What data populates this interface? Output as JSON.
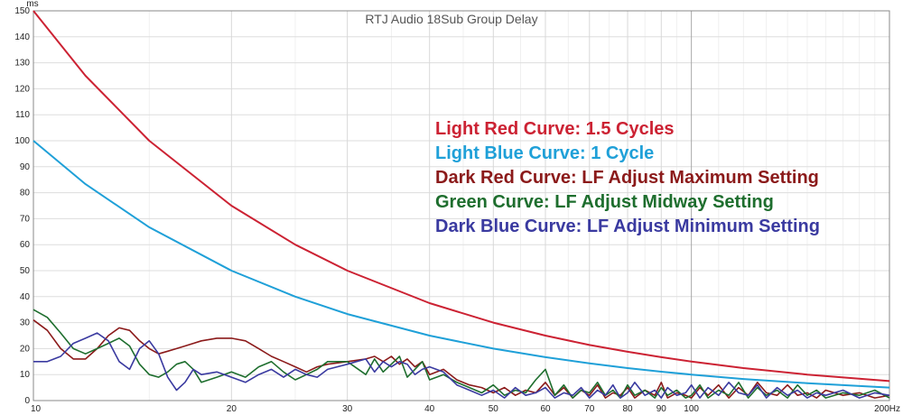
{
  "chart_data": {
    "type": "line",
    "title": "RTJ Audio 18Sub Group Delay",
    "y_unit_label": "ms",
    "x_unit_label": "Hz",
    "x_scale": "log",
    "xlim": [
      10,
      200
    ],
    "ylim": [
      0,
      150
    ],
    "grid": true,
    "legend_position": "top-right",
    "x_ticks": [
      {
        "value": 10,
        "label": "10"
      },
      {
        "value": 20,
        "label": "20"
      },
      {
        "value": 30,
        "label": "30"
      },
      {
        "value": 40,
        "label": "40"
      },
      {
        "value": 50,
        "label": "50"
      },
      {
        "value": 60,
        "label": "60"
      },
      {
        "value": 70,
        "label": "70"
      },
      {
        "value": 80,
        "label": "80"
      },
      {
        "value": 90,
        "label": "90"
      },
      {
        "value": 100,
        "label": "100"
      },
      {
        "value": 200,
        "label": "200Hz"
      }
    ],
    "y_ticks": [
      {
        "value": 0,
        "label": "0"
      },
      {
        "value": 10,
        "label": "10"
      },
      {
        "value": 20,
        "label": "20"
      },
      {
        "value": 30,
        "label": "30"
      },
      {
        "value": 40,
        "label": "40"
      },
      {
        "value": 50,
        "label": "50"
      },
      {
        "value": 60,
        "label": "60"
      },
      {
        "value": 70,
        "label": "70"
      },
      {
        "value": 80,
        "label": "80"
      },
      {
        "value": 90,
        "label": "90"
      },
      {
        "value": 100,
        "label": "100"
      },
      {
        "value": 110,
        "label": "110"
      },
      {
        "value": 120,
        "label": "120"
      },
      {
        "value": 130,
        "label": "130"
      },
      {
        "value": 140,
        "label": "140"
      },
      {
        "value": 150,
        "label": "150"
      }
    ],
    "series": [
      {
        "name": "Light Red Curve: 1.5 Cycles",
        "color": "#cc2233",
        "points": [
          [
            10,
            150
          ],
          [
            12,
            125
          ],
          [
            15,
            100
          ],
          [
            20,
            75
          ],
          [
            25,
            60
          ],
          [
            30,
            50
          ],
          [
            40,
            37.5
          ],
          [
            50,
            30
          ],
          [
            60,
            25
          ],
          [
            70,
            21.4
          ],
          [
            80,
            18.8
          ],
          [
            90,
            16.7
          ],
          [
            100,
            15
          ],
          [
            120,
            12.5
          ],
          [
            150,
            10
          ],
          [
            200,
            7.5
          ]
        ]
      },
      {
        "name": "Light Blue Curve: 1 Cycle",
        "color": "#1fa0d8",
        "points": [
          [
            10,
            100
          ],
          [
            12,
            83.3
          ],
          [
            15,
            66.7
          ],
          [
            20,
            50
          ],
          [
            25,
            40
          ],
          [
            30,
            33.3
          ],
          [
            40,
            25
          ],
          [
            50,
            20
          ],
          [
            60,
            16.7
          ],
          [
            70,
            14.3
          ],
          [
            80,
            12.5
          ],
          [
            90,
            11.1
          ],
          [
            100,
            10
          ],
          [
            120,
            8.3
          ],
          [
            150,
            6.7
          ],
          [
            200,
            5
          ]
        ]
      },
      {
        "name": "Dark Red Curve: LF Adjust Maximum Setting",
        "color": "#8b1a1a",
        "points": [
          [
            10,
            31
          ],
          [
            10.5,
            27
          ],
          [
            11,
            20
          ],
          [
            11.5,
            16
          ],
          [
            12,
            16
          ],
          [
            12.5,
            20
          ],
          [
            13,
            25
          ],
          [
            13.5,
            28
          ],
          [
            14,
            27
          ],
          [
            14.5,
            23
          ],
          [
            15,
            20
          ],
          [
            15.5,
            18
          ],
          [
            16,
            19
          ],
          [
            16.5,
            20
          ],
          [
            17,
            21
          ],
          [
            17.5,
            22
          ],
          [
            18,
            23
          ],
          [
            19,
            24
          ],
          [
            20,
            24
          ],
          [
            21,
            23
          ],
          [
            22,
            20
          ],
          [
            23,
            17
          ],
          [
            24,
            15
          ],
          [
            25,
            13
          ],
          [
            26,
            11
          ],
          [
            27,
            13
          ],
          [
            28,
            14
          ],
          [
            30,
            15
          ],
          [
            32,
            16
          ],
          [
            33,
            17
          ],
          [
            34,
            15
          ],
          [
            35,
            17
          ],
          [
            36,
            14
          ],
          [
            37,
            16
          ],
          [
            38,
            13
          ],
          [
            39,
            15
          ],
          [
            40,
            10
          ],
          [
            42,
            12
          ],
          [
            44,
            8
          ],
          [
            46,
            6
          ],
          [
            48,
            5
          ],
          [
            50,
            3
          ],
          [
            52,
            5
          ],
          [
            54,
            2
          ],
          [
            56,
            4
          ],
          [
            58,
            3
          ],
          [
            60,
            7
          ],
          [
            62,
            2
          ],
          [
            64,
            5
          ],
          [
            66,
            1
          ],
          [
            68,
            4
          ],
          [
            70,
            2
          ],
          [
            72,
            6
          ],
          [
            74,
            1
          ],
          [
            76,
            3
          ],
          [
            78,
            2
          ],
          [
            80,
            5
          ],
          [
            82,
            1
          ],
          [
            85,
            4
          ],
          [
            88,
            2
          ],
          [
            90,
            7
          ],
          [
            92,
            1
          ],
          [
            95,
            3
          ],
          [
            98,
            2
          ],
          [
            100,
            1
          ],
          [
            103,
            5
          ],
          [
            106,
            2
          ],
          [
            110,
            6
          ],
          [
            114,
            1
          ],
          [
            118,
            5
          ],
          [
            122,
            2
          ],
          [
            126,
            7
          ],
          [
            130,
            3
          ],
          [
            135,
            2
          ],
          [
            140,
            6
          ],
          [
            145,
            2
          ],
          [
            150,
            3
          ],
          [
            155,
            1
          ],
          [
            160,
            4
          ],
          [
            170,
            2
          ],
          [
            180,
            3
          ],
          [
            190,
            1
          ],
          [
            200,
            2
          ]
        ]
      },
      {
        "name": "Green Curve: LF Adjust Midway Setting",
        "color": "#1e6e2e",
        "points": [
          [
            10,
            35
          ],
          [
            10.5,
            32
          ],
          [
            11,
            26
          ],
          [
            11.5,
            20
          ],
          [
            12,
            18
          ],
          [
            12.5,
            20
          ],
          [
            13,
            22
          ],
          [
            13.5,
            24
          ],
          [
            14,
            21
          ],
          [
            14.5,
            14
          ],
          [
            15,
            10
          ],
          [
            15.5,
            9
          ],
          [
            16,
            11
          ],
          [
            16.5,
            14
          ],
          [
            17,
            15
          ],
          [
            17.5,
            12
          ],
          [
            18,
            7
          ],
          [
            19,
            9
          ],
          [
            20,
            11
          ],
          [
            21,
            9
          ],
          [
            22,
            13
          ],
          [
            23,
            15
          ],
          [
            24,
            11
          ],
          [
            25,
            8
          ],
          [
            26,
            10
          ],
          [
            27,
            12
          ],
          [
            28,
            15
          ],
          [
            30,
            15
          ],
          [
            32,
            10
          ],
          [
            33,
            16
          ],
          [
            34,
            11
          ],
          [
            35,
            14
          ],
          [
            36,
            17
          ],
          [
            37,
            9
          ],
          [
            38,
            12
          ],
          [
            39,
            15
          ],
          [
            40,
            8
          ],
          [
            42,
            10
          ],
          [
            44,
            7
          ],
          [
            46,
            5
          ],
          [
            48,
            3
          ],
          [
            50,
            6
          ],
          [
            52,
            2
          ],
          [
            54,
            4
          ],
          [
            56,
            3
          ],
          [
            58,
            8
          ],
          [
            60,
            12
          ],
          [
            62,
            2
          ],
          [
            64,
            6
          ],
          [
            66,
            1
          ],
          [
            68,
            4
          ],
          [
            70,
            3
          ],
          [
            72,
            7
          ],
          [
            74,
            2
          ],
          [
            76,
            4
          ],
          [
            78,
            1
          ],
          [
            80,
            6
          ],
          [
            82,
            2
          ],
          [
            85,
            4
          ],
          [
            88,
            1
          ],
          [
            90,
            5
          ],
          [
            92,
            2
          ],
          [
            95,
            4
          ],
          [
            98,
            1
          ],
          [
            100,
            2
          ],
          [
            103,
            6
          ],
          [
            106,
            1
          ],
          [
            110,
            4
          ],
          [
            114,
            2
          ],
          [
            118,
            7
          ],
          [
            122,
            1
          ],
          [
            126,
            5
          ],
          [
            130,
            2
          ],
          [
            135,
            4
          ],
          [
            140,
            1
          ],
          [
            145,
            6
          ],
          [
            150,
            2
          ],
          [
            155,
            4
          ],
          [
            160,
            1
          ],
          [
            170,
            3
          ],
          [
            180,
            2
          ],
          [
            190,
            4
          ],
          [
            200,
            1
          ]
        ]
      },
      {
        "name": "Dark Blue Curve: LF Adjust Minimum Setting",
        "color": "#3a3aa0",
        "points": [
          [
            10,
            15
          ],
          [
            10.5,
            15
          ],
          [
            11,
            17
          ],
          [
            11.5,
            22
          ],
          [
            12,
            24
          ],
          [
            12.5,
            26
          ],
          [
            13,
            23
          ],
          [
            13.5,
            15
          ],
          [
            14,
            12
          ],
          [
            14.5,
            20
          ],
          [
            15,
            23
          ],
          [
            15.5,
            18
          ],
          [
            16,
            9
          ],
          [
            16.5,
            4
          ],
          [
            17,
            7
          ],
          [
            17.5,
            12
          ],
          [
            18,
            10
          ],
          [
            19,
            11
          ],
          [
            20,
            9
          ],
          [
            21,
            7
          ],
          [
            22,
            10
          ],
          [
            23,
            12
          ],
          [
            24,
            9
          ],
          [
            25,
            12
          ],
          [
            26,
            10
          ],
          [
            27,
            9
          ],
          [
            28,
            12
          ],
          [
            30,
            14
          ],
          [
            32,
            16
          ],
          [
            33,
            11
          ],
          [
            34,
            15
          ],
          [
            35,
            13
          ],
          [
            36,
            15
          ],
          [
            37,
            14
          ],
          [
            38,
            10
          ],
          [
            39,
            12
          ],
          [
            40,
            13
          ],
          [
            42,
            11
          ],
          [
            44,
            6
          ],
          [
            46,
            4
          ],
          [
            48,
            2
          ],
          [
            50,
            4
          ],
          [
            52,
            1
          ],
          [
            54,
            5
          ],
          [
            56,
            2
          ],
          [
            58,
            3
          ],
          [
            60,
            5
          ],
          [
            62,
            1
          ],
          [
            64,
            3
          ],
          [
            66,
            2
          ],
          [
            68,
            5
          ],
          [
            70,
            1
          ],
          [
            72,
            4
          ],
          [
            74,
            2
          ],
          [
            76,
            6
          ],
          [
            78,
            1
          ],
          [
            80,
            3
          ],
          [
            82,
            7
          ],
          [
            85,
            2
          ],
          [
            88,
            4
          ],
          [
            90,
            1
          ],
          [
            92,
            5
          ],
          [
            95,
            2
          ],
          [
            98,
            3
          ],
          [
            100,
            6
          ],
          [
            103,
            1
          ],
          [
            106,
            5
          ],
          [
            110,
            2
          ],
          [
            114,
            7
          ],
          [
            118,
            3
          ],
          [
            122,
            2
          ],
          [
            126,
            6
          ],
          [
            130,
            1
          ],
          [
            135,
            5
          ],
          [
            140,
            2
          ],
          [
            145,
            4
          ],
          [
            150,
            1
          ],
          [
            155,
            3
          ],
          [
            160,
            2
          ],
          [
            170,
            4
          ],
          [
            180,
            1
          ],
          [
            190,
            3
          ],
          [
            200,
            2
          ]
        ]
      }
    ]
  }
}
